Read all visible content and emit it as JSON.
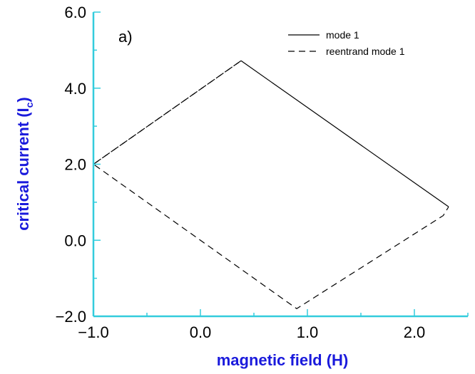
{
  "chart_data": {
    "type": "line",
    "xlabel": "magnetic field (H)",
    "ylabel_main": "critical current (I",
    "ylabel_sub": "c",
    "ylabel_close": ")",
    "xlim": [
      -1.0,
      2.5
    ],
    "ylim": [
      -2.0,
      6.0
    ],
    "x_ticks": [
      -1.0,
      0.0,
      1.0,
      2.0
    ],
    "x_tick_labels": [
      "−1.0",
      "0.0",
      "1.0",
      "2.0"
    ],
    "y_ticks": [
      -2.0,
      0.0,
      2.0,
      4.0,
      6.0
    ],
    "y_tick_labels": [
      "−2.0",
      "0.0",
      "2.0",
      "4.0",
      "6.0"
    ],
    "annotation": "a)",
    "legend_position": "top-right",
    "series": [
      {
        "name": "mode 1",
        "style": "solid",
        "x": [
          0.38,
          2.32
        ],
        "y": [
          4.72,
          0.88
        ]
      },
      {
        "name": "reentrand mode 1",
        "style": "dashed",
        "x": [
          0.38,
          -1.0,
          0.9,
          2.27,
          2.32
        ],
        "y": [
          4.72,
          2.0,
          -1.8,
          0.65,
          0.88
        ]
      },
      {
        "name": "",
        "style": "dashed",
        "x": [
          -1.0,
          0.38
        ],
        "y": [
          2.0,
          4.72
        ]
      }
    ],
    "colors": {
      "axis": "#33ccdd",
      "axis_title": "#1a1adc",
      "line": "#000000"
    }
  }
}
